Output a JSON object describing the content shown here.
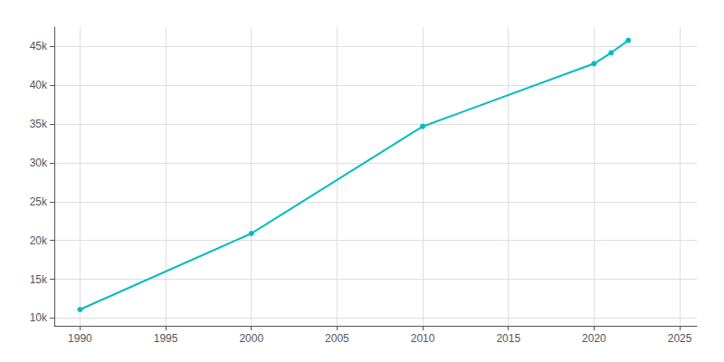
{
  "chart_data": {
    "type": "line",
    "x": [
      1990,
      2000,
      2010,
      2020,
      2021,
      2022
    ],
    "values": [
      11100,
      20900,
      34700,
      42800,
      44200,
      45800
    ],
    "color": "#00BBBF",
    "marker": "circle",
    "xlim": [
      1988.5,
      2026
    ],
    "xticks": [
      1990,
      1995,
      2000,
      2005,
      2010,
      2015,
      2020,
      2025
    ],
    "ylim": [
      9000,
      47500
    ],
    "yticks": [
      {
        "value": 10000,
        "label": "10k"
      },
      {
        "value": 15000,
        "label": "15k"
      },
      {
        "value": 20000,
        "label": "20k"
      },
      {
        "value": 25000,
        "label": "25k"
      },
      {
        "value": 30000,
        "label": "30k"
      },
      {
        "value": 35000,
        "label": "35k"
      },
      {
        "value": 40000,
        "label": "40k"
      },
      {
        "value": 45000,
        "label": "45k"
      }
    ],
    "grid": true
  }
}
